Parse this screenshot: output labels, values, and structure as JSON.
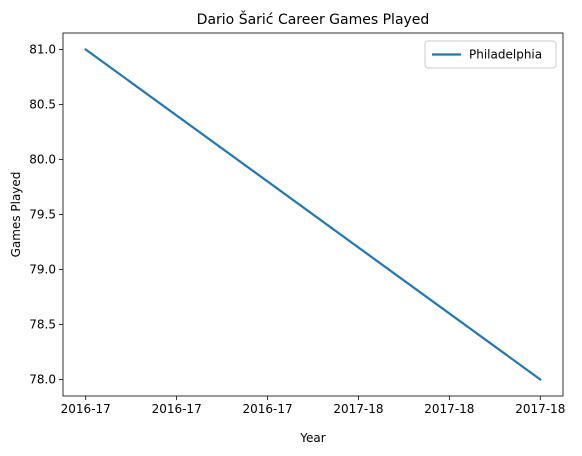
{
  "chart_data": {
    "type": "line",
    "title": "Dario Šarić Career Games Played",
    "xlabel": "Year",
    "ylabel": "Games Played",
    "x": [
      0,
      1
    ],
    "x_range": [
      -0.05,
      1.05
    ],
    "xticks": [
      {
        "value": 0.0,
        "label": "2016-17"
      },
      {
        "value": 0.2,
        "label": "2016-17"
      },
      {
        "value": 0.4,
        "label": "2016-17"
      },
      {
        "value": 0.6,
        "label": "2017-18"
      },
      {
        "value": 0.8,
        "label": "2017-18"
      },
      {
        "value": 1.0,
        "label": "2017-18"
      }
    ],
    "ylim": [
      77.85,
      81.15
    ],
    "yticks": [
      {
        "value": 78.0,
        "label": "78.0"
      },
      {
        "value": 78.5,
        "label": "78.5"
      },
      {
        "value": 79.0,
        "label": "79.0"
      },
      {
        "value": 79.5,
        "label": "79.5"
      },
      {
        "value": 80.0,
        "label": "80.0"
      },
      {
        "value": 80.5,
        "label": "80.5"
      },
      {
        "value": 81.0,
        "label": "81.0"
      }
    ],
    "series": [
      {
        "name": "Philadelphia",
        "color": "#1f77b4",
        "values": [
          81,
          78
        ]
      }
    ],
    "legend": "top-right",
    "grid": false
  }
}
